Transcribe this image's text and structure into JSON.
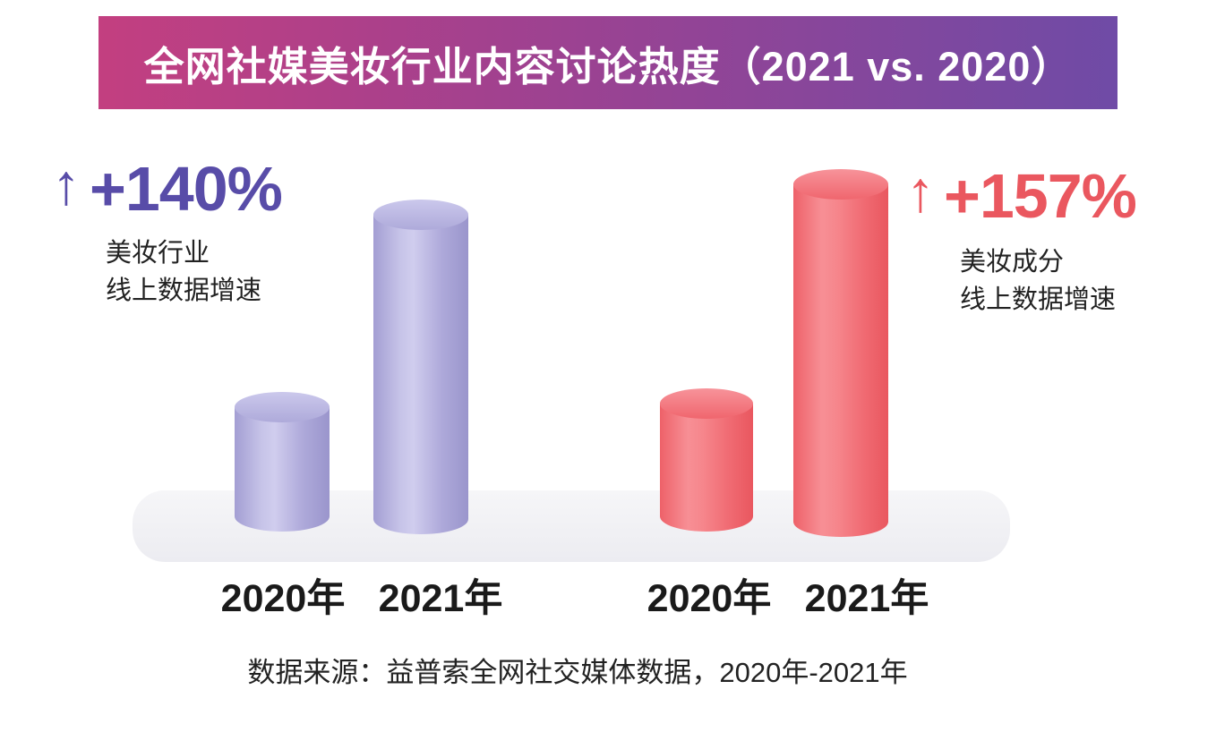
{
  "banner": {
    "title": "全网社媒美妆行业内容讨论热度（2021 vs. 2020）"
  },
  "groups": [
    {
      "name": "美妆行业",
      "arrow": "↑",
      "growth": "+140%",
      "desc1": "美妆行业",
      "desc2": "线上数据增速",
      "labels": [
        "2020年",
        "2021年"
      ],
      "color": "#a9a4d6",
      "text_color": "#584ca8"
    },
    {
      "name": "美妆成分",
      "arrow": "↑",
      "growth": "+157%",
      "desc1": "美妆成分",
      "desc2": "线上数据增速",
      "labels": [
        "2020年",
        "2021年"
      ],
      "color": "#f2696f",
      "text_color": "#ea575f"
    }
  ],
  "source": "数据来源：益普索全网社交媒体数据，2020年-2021年",
  "colors": {
    "banner_gradient_left": "#c33f80",
    "banner_gradient_right": "#6f4ba6",
    "purple_accent": "#584ca8",
    "red_accent": "#ea575f",
    "platform": "#efeff3"
  },
  "chart_data": {
    "type": "bar",
    "title": "全网社媒美妆行业内容讨论热度（2021 vs. 2020）",
    "categories": [
      "2020年",
      "2021年"
    ],
    "series": [
      {
        "name": "美妆行业线上数据增速",
        "growth_label": "+140%",
        "values": [
          1,
          2.4
        ],
        "color": "#a9a4d6"
      },
      {
        "name": "美妆成分线上数据增速",
        "growth_label": "+157%",
        "values": [
          1,
          2.57
        ],
        "color": "#f2696f"
      }
    ],
    "value_axis": "relative index, 2020 = 1 (no visible numeric axis)",
    "grid": false,
    "legend": false,
    "bar_style": "3d-cylinder",
    "source": "数据来源：益普索全网社交媒体数据，2020年-2021年"
  }
}
